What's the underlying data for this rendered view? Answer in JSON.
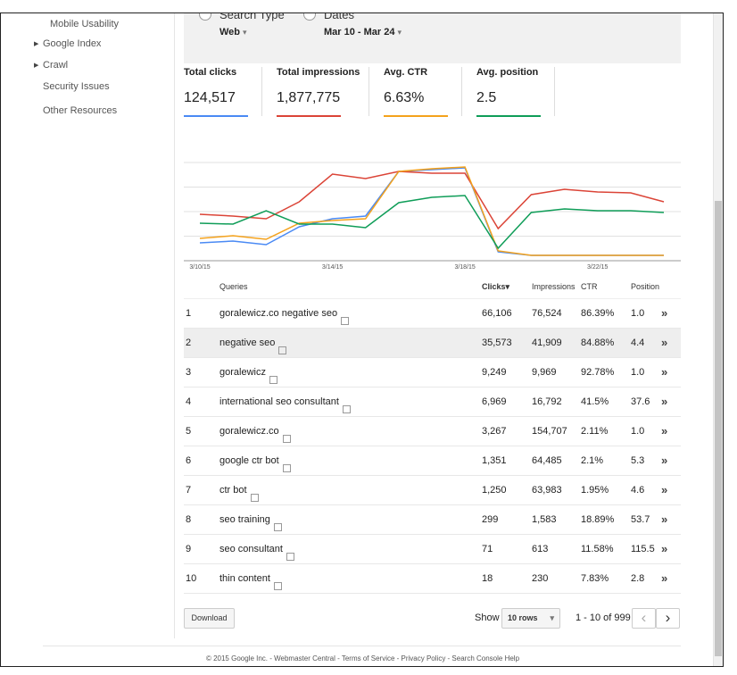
{
  "sidebar": {
    "items": [
      {
        "label": "Mobile Usability",
        "has_arrow": false
      },
      {
        "label": "Google Index",
        "has_arrow": true
      },
      {
        "label": "Crawl",
        "has_arrow": true
      },
      {
        "label": "Security Issues",
        "has_arrow": false
      },
      {
        "label": "Other Resources",
        "has_arrow": false
      }
    ]
  },
  "filters": {
    "search_type": {
      "label": "Search Type",
      "value": "Web"
    },
    "dates": {
      "label": "Dates",
      "value": "Mar 10 - Mar 24"
    }
  },
  "metrics": [
    {
      "label": "Total clicks",
      "value": "124,517",
      "color": "#4a8af4"
    },
    {
      "label": "Total impressions",
      "value": "1,877,775",
      "color": "#db4437"
    },
    {
      "label": "Avg. CTR",
      "value": "6.63%",
      "color": "#f4a21c"
    },
    {
      "label": "Avg. position",
      "value": "2.5",
      "color": "#0f9d58"
    }
  ],
  "chart_data": {
    "type": "line",
    "x": [
      "3/10/15",
      "3/11/15",
      "3/12/15",
      "3/13/15",
      "3/14/15",
      "3/15/15",
      "3/16/15",
      "3/17/15",
      "3/18/15",
      "3/19/15",
      "3/20/15",
      "3/21/15",
      "3/22/15",
      "3/23/15",
      "3/24/15"
    ],
    "x_ticks": [
      "3/10/15",
      "3/14/15",
      "3/18/15",
      "3/22/15"
    ],
    "series": [
      {
        "name": "Total clicks",
        "color": "#4a8af4",
        "values": [
          0.2,
          0.22,
          0.18,
          0.38,
          0.47,
          0.5,
          1.0,
          1.02,
          1.04,
          0.1,
          0.06,
          0.06,
          0.06,
          0.06,
          0.06
        ]
      },
      {
        "name": "Total impressions",
        "color": "#db4437",
        "values": [
          0.52,
          0.5,
          0.47,
          0.66,
          0.97,
          0.92,
          1.0,
          0.98,
          0.98,
          0.36,
          0.74,
          0.8,
          0.77,
          0.76,
          0.66
        ]
      },
      {
        "name": "Avg. CTR",
        "color": "#f4a21c",
        "values": [
          0.25,
          0.28,
          0.24,
          0.42,
          0.45,
          0.47,
          1.0,
          1.03,
          1.05,
          0.11,
          0.06,
          0.06,
          0.06,
          0.06,
          0.06
        ]
      },
      {
        "name": "Avg. position",
        "color": "#0f9d58",
        "values": [
          0.42,
          0.41,
          0.56,
          0.41,
          0.41,
          0.37,
          0.65,
          0.71,
          0.73,
          0.14,
          0.54,
          0.58,
          0.56,
          0.56,
          0.54
        ]
      }
    ],
    "grid": true
  },
  "table": {
    "headers": {
      "queries": "Queries",
      "clicks": "Clicks▾",
      "impressions": "Impressions",
      "ctr": "CTR",
      "position": "Position"
    },
    "rows": [
      {
        "n": "1",
        "query": "goralewicz.co negative seo",
        "clicks": "66,106",
        "impressions": "76,524",
        "ctr": "86.39%",
        "position": "1.0"
      },
      {
        "n": "2",
        "query": "negative seo",
        "clicks": "35,573",
        "impressions": "41,909",
        "ctr": "84.88%",
        "position": "4.4"
      },
      {
        "n": "3",
        "query": "goralewicz",
        "clicks": "9,249",
        "impressions": "9,969",
        "ctr": "92.78%",
        "position": "1.0"
      },
      {
        "n": "4",
        "query": "international seo consultant",
        "clicks": "6,969",
        "impressions": "16,792",
        "ctr": "41.5%",
        "position": "37.6"
      },
      {
        "n": "5",
        "query": "goralewicz.co",
        "clicks": "3,267",
        "impressions": "154,707",
        "ctr": "2.11%",
        "position": "1.0"
      },
      {
        "n": "6",
        "query": "google ctr bot",
        "clicks": "1,351",
        "impressions": "64,485",
        "ctr": "2.1%",
        "position": "5.3"
      },
      {
        "n": "7",
        "query": "ctr bot",
        "clicks": "1,250",
        "impressions": "63,983",
        "ctr": "1.95%",
        "position": "4.6"
      },
      {
        "n": "8",
        "query": "seo training",
        "clicks": "299",
        "impressions": "1,583",
        "ctr": "18.89%",
        "position": "53.7"
      },
      {
        "n": "9",
        "query": "seo consultant",
        "clicks": "71",
        "impressions": "613",
        "ctr": "11.58%",
        "position": "115.5"
      },
      {
        "n": "10",
        "query": "thin content",
        "clicks": "18",
        "impressions": "230",
        "ctr": "7.83%",
        "position": "2.8"
      }
    ],
    "row_chevron": "»"
  },
  "bottom": {
    "download": "Download",
    "show_label": "Show",
    "rows_select": "10 rows",
    "range": "1 - 10 of 999",
    "prev": "‹",
    "next": "›"
  },
  "footer": {
    "text": "© 2015 Google Inc. - Webmaster Central - Terms of Service - Privacy Policy - Search Console Help"
  }
}
